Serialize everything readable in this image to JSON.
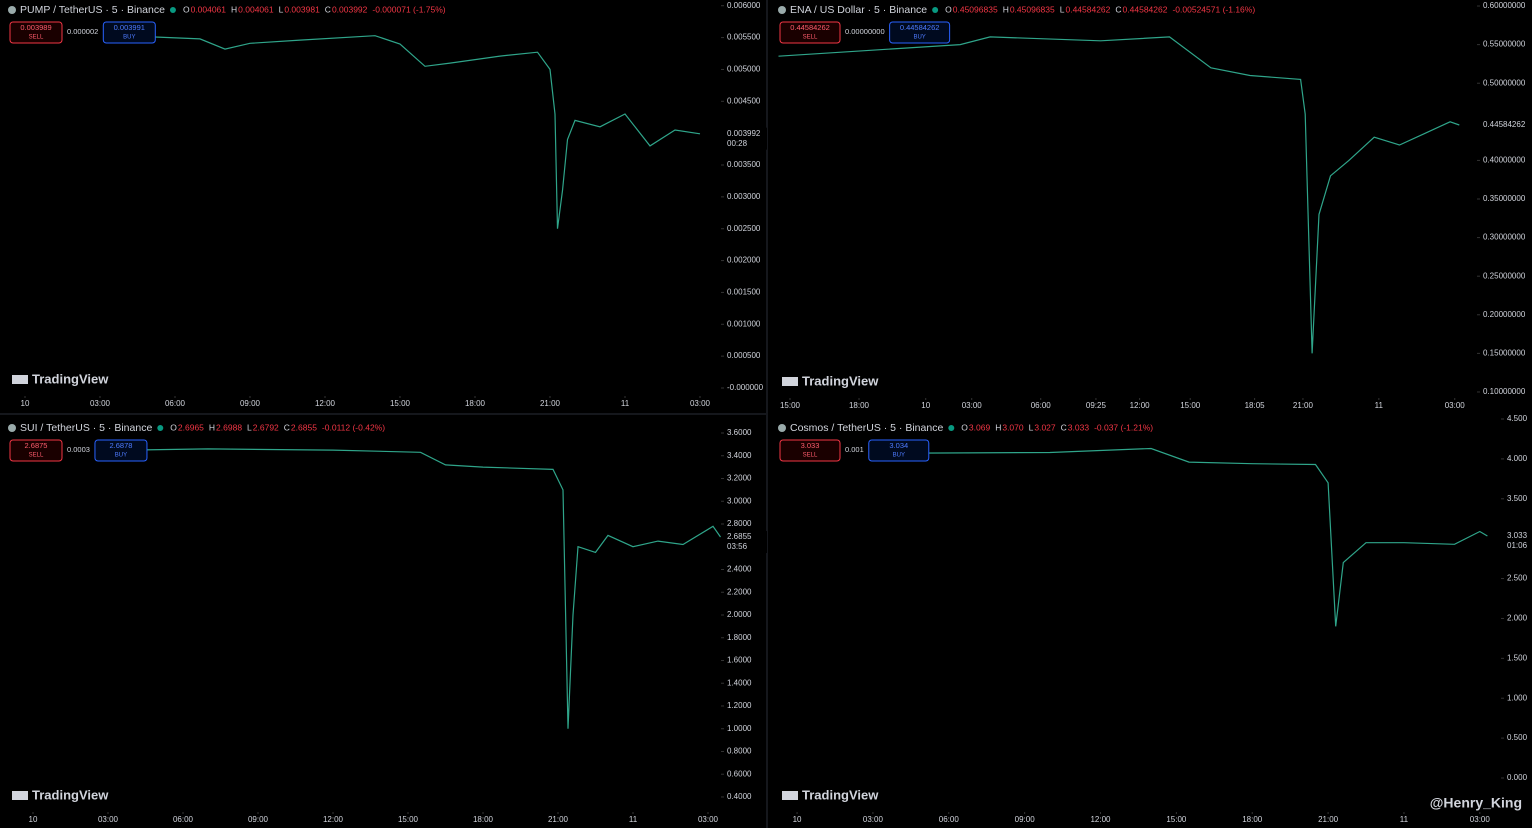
{
  "chart_data": [
    {
      "type": "line",
      "title": "PUMP / TetherUS · 5 · Binance",
      "color": "#2fa58a",
      "ohlc": [
        {
          "label": "O",
          "value": "0.004061"
        },
        {
          "label": "H",
          "value": "0.004061"
        },
        {
          "label": "L",
          "value": "0.003981"
        },
        {
          "label": "C",
          "value": "0.003992"
        }
      ],
      "change": "-0.000071 (-1.75%)",
      "sell": {
        "price": "0.003989",
        "label": "SELL"
      },
      "spread": "0.000002",
      "buy": {
        "price": "0.003991",
        "label": "BUY"
      },
      "last_price": {
        "value": 0.003992,
        "label": "0.003992"
      },
      "countdown": "00:28",
      "watermark": "TradingView",
      "x": [
        5.2,
        7,
        8,
        9,
        11,
        14,
        15,
        16,
        17,
        19,
        20.5,
        21,
        21.2,
        21.3,
        21.5,
        21.7,
        22,
        23,
        24,
        25,
        26,
        27
      ],
      "values": [
        0.00551,
        0.00548,
        0.00532,
        0.00541,
        0.00546,
        0.00553,
        0.0054,
        0.00505,
        0.0051,
        0.00521,
        0.00527,
        0.005,
        0.0043,
        0.0025,
        0.0031,
        0.0039,
        0.0042,
        0.0041,
        0.0043,
        0.0038,
        0.00405,
        0.00399
      ],
      "xlim": [
        -0.8,
        27.6
      ],
      "ylim": [
        -0.00011,
        0.00609
      ],
      "xticks": [
        {
          "value": 0,
          "label": "10"
        },
        {
          "value": 3,
          "label": "03:00"
        },
        {
          "value": 6,
          "label": "06:00"
        },
        {
          "value": 9,
          "label": "09:00"
        },
        {
          "value": 12,
          "label": "12:00"
        },
        {
          "value": 15,
          "label": "15:00"
        },
        {
          "value": 18,
          "label": "18:00"
        },
        {
          "value": 21,
          "label": "21:00"
        },
        {
          "value": 24,
          "label": "11"
        },
        {
          "value": 27,
          "label": "03:00"
        }
      ],
      "yticks": [
        {
          "value": 0.006,
          "label": "0.006000"
        },
        {
          "value": 0.0055,
          "label": "0.005500"
        },
        {
          "value": 0.005,
          "label": "0.005000"
        },
        {
          "value": 0.0045,
          "label": "0.004500"
        },
        {
          "value": 0.0035,
          "label": "0.003500"
        },
        {
          "value": 0.003,
          "label": "0.003000"
        },
        {
          "value": 0.0025,
          "label": "0.002500"
        },
        {
          "value": 0.002,
          "label": "0.002000"
        },
        {
          "value": 0.0015,
          "label": "0.001500"
        },
        {
          "value": 0.001,
          "label": "0.001000"
        },
        {
          "value": 0.0005,
          "label": "0.000500"
        },
        {
          "value": 0,
          "label": "-0.000000"
        }
      ]
    },
    {
      "type": "line",
      "title": "ENA / US Dollar · 5 · Binance",
      "color": "#2fa58a",
      "ohlc": [
        {
          "label": "O",
          "value": "0.45096835"
        },
        {
          "label": "H",
          "value": "0.45096835"
        },
        {
          "label": "L",
          "value": "0.44584262"
        },
        {
          "label": "C",
          "value": "0.44584262"
        }
      ],
      "change": "-0.00524571 (-1.16%)",
      "sell": {
        "price": "0.44584262",
        "label": "SELL"
      },
      "spread": "0.00000000",
      "buy": {
        "price": "0.44584262",
        "label": "BUY"
      },
      "last_price": {
        "value": 0.44584262,
        "label": "0.44584262"
      },
      "watermark": "TradingView",
      "x": [
        -0.5,
        7.4,
        8.7,
        13.5,
        16.5,
        18.3,
        20,
        22.2,
        22.4,
        22.7,
        23,
        23.5,
        24.3,
        25.4,
        26.5,
        27.6,
        28.7,
        29.1
      ],
      "values": [
        0.535,
        0.55,
        0.56,
        0.555,
        0.56,
        0.52,
        0.51,
        0.505,
        0.46,
        0.15,
        0.33,
        0.38,
        0.4,
        0.43,
        0.42,
        0.435,
        0.45,
        0.44584262
      ],
      "xlim": [
        -0.87,
        30.65
      ],
      "ylim": [
        0.0935,
        0.6078
      ],
      "xticks": [
        {
          "value": 0,
          "label": "15:00"
        },
        {
          "value": 3,
          "label": "18:00"
        },
        {
          "value": 5.9,
          "label": "10"
        },
        {
          "value": 7.9,
          "label": "03:00"
        },
        {
          "value": 10.9,
          "label": "06:00"
        },
        {
          "value": 13.3,
          "label": "09:25"
        },
        {
          "value": 15.2,
          "label": "12:00"
        },
        {
          "value": 17.4,
          "label": "15:00"
        },
        {
          "value": 20.2,
          "label": "18:05"
        },
        {
          "value": 22.3,
          "label": "21:00"
        },
        {
          "value": 25.6,
          "label": "11"
        },
        {
          "value": 28.9,
          "label": "03:00"
        }
      ],
      "yticks": [
        {
          "value": 0.6,
          "label": "0.60000000"
        },
        {
          "value": 0.55,
          "label": "0.55000000"
        },
        {
          "value": 0.5,
          "label": "0.50000000"
        },
        {
          "value": 0.4,
          "label": "0.40000000"
        },
        {
          "value": 0.35,
          "label": "0.35000000"
        },
        {
          "value": 0.3,
          "label": "0.30000000"
        },
        {
          "value": 0.25,
          "label": "0.25000000"
        },
        {
          "value": 0.2,
          "label": "0.20000000"
        },
        {
          "value": 0.15,
          "label": "0.15000000"
        },
        {
          "value": 0.1,
          "label": "0.10000000"
        }
      ]
    },
    {
      "type": "line",
      "title": "SUI / TetherUS · 5 · Binance",
      "color": "#2fa58a",
      "ohlc": [
        {
          "label": "O",
          "value": "2.6965"
        },
        {
          "label": "H",
          "value": "2.6988"
        },
        {
          "label": "L",
          "value": "2.6792"
        },
        {
          "label": "C",
          "value": "2.6855"
        }
      ],
      "change": "-0.0112 (-0.42%)",
      "sell": {
        "price": "2.6875",
        "label": "SELL"
      },
      "spread": "0.0003",
      "buy": {
        "price": "2.6878",
        "label": "BUY"
      },
      "last_price": {
        "value": 2.6855,
        "label": "2.6855"
      },
      "countdown": "03:56",
      "watermark": "TradingView",
      "x": [
        3.8,
        7,
        12,
        15.5,
        16.5,
        18,
        20.8,
        21.2,
        21.4,
        21.6,
        21.8,
        22.5,
        23,
        24,
        25,
        26,
        27.2,
        27.5
      ],
      "values": [
        3.45,
        3.46,
        3.45,
        3.43,
        3.32,
        3.3,
        3.28,
        3.1,
        1.0,
        2.0,
        2.6,
        2.55,
        2.7,
        2.6,
        2.65,
        2.62,
        2.78,
        2.6855
      ],
      "xlim": [
        -1.12,
        27.68
      ],
      "ylim": [
        0.303,
        3.732
      ],
      "xticks": [
        {
          "value": 0,
          "label": "10"
        },
        {
          "value": 3,
          "label": "03:00"
        },
        {
          "value": 6,
          "label": "06:00"
        },
        {
          "value": 9,
          "label": "09:00"
        },
        {
          "value": 12,
          "label": "12:00"
        },
        {
          "value": 15,
          "label": "15:00"
        },
        {
          "value": 18,
          "label": "18:00"
        },
        {
          "value": 21,
          "label": "21:00"
        },
        {
          "value": 24,
          "label": "11"
        },
        {
          "value": 27,
          "label": "03:00"
        }
      ],
      "yticks": [
        {
          "value": 3.6,
          "label": "3.6000"
        },
        {
          "value": 3.4,
          "label": "3.4000"
        },
        {
          "value": 3.2,
          "label": "3.2000"
        },
        {
          "value": 3,
          "label": "3.0000"
        },
        {
          "value": 2.8,
          "label": "2.8000"
        },
        {
          "value": 2.4,
          "label": "2.4000"
        },
        {
          "value": 2.2,
          "label": "2.2000"
        },
        {
          "value": 2,
          "label": "2.0000"
        },
        {
          "value": 1.8,
          "label": "1.8000"
        },
        {
          "value": 1.6,
          "label": "1.6000"
        },
        {
          "value": 1.4,
          "label": "1.4000"
        },
        {
          "value": 1.2,
          "label": "1.2000"
        },
        {
          "value": 1,
          "label": "1.0000"
        },
        {
          "value": 0.8,
          "label": "0.8000"
        },
        {
          "value": 0.6,
          "label": "0.6000"
        },
        {
          "value": 0.4,
          "label": "0.4000"
        }
      ]
    },
    {
      "type": "line",
      "title": "Cosmos / TetherUS · 5 · Binance",
      "color": "#2fa58a",
      "ohlc": [
        {
          "label": "O",
          "value": "3.069"
        },
        {
          "label": "H",
          "value": "3.070"
        },
        {
          "label": "L",
          "value": "3.027"
        },
        {
          "label": "C",
          "value": "3.033"
        }
      ],
      "change": "-0.037 (-1.21%)",
      "sell": {
        "price": "3.033",
        "label": "SELL"
      },
      "spread": "0.001",
      "buy": {
        "price": "3.034",
        "label": "BUY"
      },
      "last_price": {
        "value": 3.033,
        "label": "3.033"
      },
      "countdown": "01:06",
      "watermark": "TradingView",
      "x": [
        3.2,
        10,
        14,
        15.5,
        18,
        20.5,
        21,
        21.3,
        21.6,
        22.5,
        24,
        26,
        27,
        27.3
      ],
      "values": [
        4.07,
        4.08,
        4.13,
        3.96,
        3.94,
        3.93,
        3.7,
        1.9,
        2.7,
        2.95,
        2.95,
        2.93,
        3.09,
        3.033
      ],
      "xlim": [
        -1.07,
        27.6
      ],
      "ylim": [
        -0.376,
        4.5125
      ],
      "xticks": [
        {
          "value": 0,
          "label": "10"
        },
        {
          "value": 3,
          "label": "03:00"
        },
        {
          "value": 6,
          "label": "06:00"
        },
        {
          "value": 9,
          "label": "09:00"
        },
        {
          "value": 12,
          "label": "12:00"
        },
        {
          "value": 15,
          "label": "15:00"
        },
        {
          "value": 18,
          "label": "18:00"
        },
        {
          "value": 21,
          "label": "21:00"
        },
        {
          "value": 24,
          "label": "11"
        },
        {
          "value": 27,
          "label": "03:00"
        }
      ],
      "yticks": [
        {
          "value": 4.5,
          "label": "4.500"
        },
        {
          "value": 4,
          "label": "4.000"
        },
        {
          "value": 3.5,
          "label": "3.500"
        },
        {
          "value": 2.5,
          "label": "2.500"
        },
        {
          "value": 2,
          "label": "2.000"
        },
        {
          "value": 1.5,
          "label": "1.500"
        },
        {
          "value": 1,
          "label": "1.000"
        },
        {
          "value": 0.5,
          "label": "0.500"
        },
        {
          "value": 0,
          "label": "0.000"
        }
      ]
    }
  ],
  "watermark": "@Henry_King"
}
